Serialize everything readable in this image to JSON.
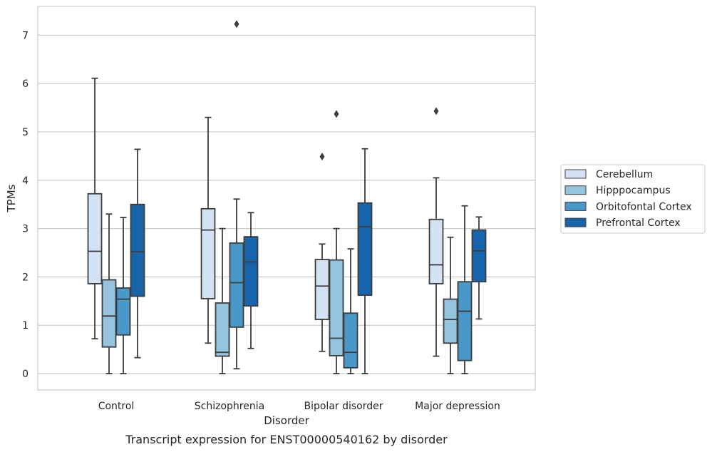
{
  "chart_data": {
    "type": "box",
    "caption": "Transcript expression for ENST00000540162 by disorder",
    "xlabel": "Disorder",
    "ylabel": "TPMs",
    "ylim": [
      -0.35,
      7.6
    ],
    "yticks": [
      0,
      1,
      2,
      3,
      4,
      5,
      6,
      7
    ],
    "grid": "horizontal",
    "legend_position": "right",
    "categories": [
      "Control",
      "Schizophrenia",
      "Bipolar disorder",
      "Major depression"
    ],
    "series": [
      {
        "name": "Cerebellum",
        "color": "#d3e3f3",
        "boxes": [
          {
            "whislo": 0.72,
            "q1": 1.86,
            "med": 2.53,
            "q3": 3.72,
            "whishi": 6.11,
            "fliers": []
          },
          {
            "whislo": 0.63,
            "q1": 1.55,
            "med": 2.97,
            "q3": 3.41,
            "whishi": 5.3,
            "fliers": []
          },
          {
            "whislo": 0.46,
            "q1": 1.12,
            "med": 1.81,
            "q3": 2.36,
            "whishi": 2.68,
            "fliers": [
              4.49
            ]
          },
          {
            "whislo": 0.36,
            "q1": 1.86,
            "med": 2.25,
            "q3": 3.19,
            "whishi": 4.05,
            "fliers": [
              5.43
            ]
          }
        ]
      },
      {
        "name": "Hipppocampus",
        "color": "#94c4df",
        "boxes": [
          {
            "whislo": 0.0,
            "q1": 0.55,
            "med": 1.19,
            "q3": 1.94,
            "whishi": 3.3,
            "fliers": []
          },
          {
            "whislo": 0.0,
            "q1": 0.36,
            "med": 0.44,
            "q3": 1.46,
            "whishi": 3.0,
            "fliers": []
          },
          {
            "whislo": 0.0,
            "q1": 0.37,
            "med": 0.73,
            "q3": 2.35,
            "whishi": 3.0,
            "fliers": [
              5.37
            ]
          },
          {
            "whislo": 0.0,
            "q1": 0.63,
            "med": 1.12,
            "q3": 1.54,
            "whishi": 2.82,
            "fliers": []
          }
        ]
      },
      {
        "name": "Orbitofontal Cortex",
        "color": "#4a98c9",
        "boxes": [
          {
            "whislo": 0.0,
            "q1": 0.8,
            "med": 1.54,
            "q3": 1.77,
            "whishi": 3.23,
            "fliers": []
          },
          {
            "whislo": 0.1,
            "q1": 0.96,
            "med": 1.88,
            "q3": 2.7,
            "whishi": 3.61,
            "fliers": [
              7.23
            ]
          },
          {
            "whislo": 0.0,
            "q1": 0.12,
            "med": 0.44,
            "q3": 1.25,
            "whishi": 2.58,
            "fliers": []
          },
          {
            "whislo": 0.0,
            "q1": 0.27,
            "med": 1.29,
            "q3": 1.9,
            "whishi": 3.47,
            "fliers": []
          }
        ]
      },
      {
        "name": "Prefrontal Cortex",
        "color": "#1764ab",
        "boxes": [
          {
            "whislo": 0.33,
            "q1": 1.6,
            "med": 2.52,
            "q3": 3.5,
            "whishi": 4.64,
            "fliers": []
          },
          {
            "whislo": 0.52,
            "q1": 1.4,
            "med": 2.31,
            "q3": 2.83,
            "whishi": 3.33,
            "fliers": []
          },
          {
            "whislo": 0.0,
            "q1": 1.62,
            "med": 3.04,
            "q3": 3.53,
            "whishi": 4.65,
            "fliers": []
          },
          {
            "whislo": 1.13,
            "q1": 1.9,
            "med": 2.54,
            "q3": 2.97,
            "whishi": 3.24,
            "fliers": []
          }
        ]
      }
    ]
  }
}
